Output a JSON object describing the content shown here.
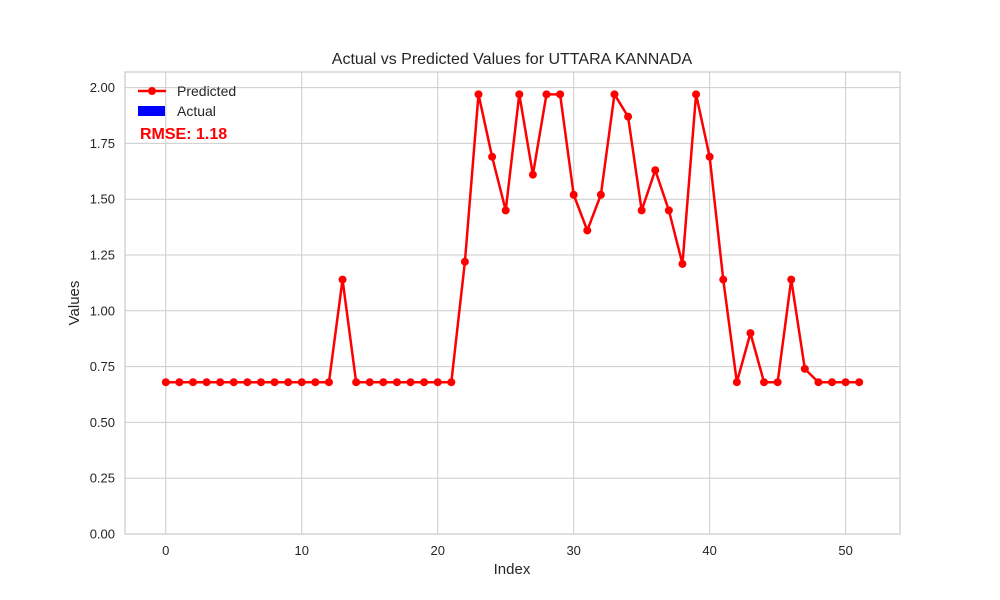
{
  "chart_data": {
    "type": "line",
    "title": "Actual vs Predicted Values for UTTARA KANNADA",
    "xlabel": "Index",
    "ylabel": "Values",
    "xlim": [
      -3,
      54
    ],
    "ylim": [
      0,
      2.07
    ],
    "xticks": [
      0,
      10,
      20,
      30,
      40,
      50
    ],
    "yticks": [
      0.0,
      0.25,
      0.5,
      0.75,
      1.0,
      1.25,
      1.5,
      1.75,
      2.0
    ],
    "grid": true,
    "legend_position": "top-left",
    "annotation": "RMSE: 1.18",
    "series": [
      {
        "name": "Predicted",
        "color": "#ff0000",
        "x": [
          0,
          1,
          2,
          3,
          4,
          5,
          6,
          7,
          8,
          9,
          10,
          11,
          12,
          13,
          14,
          15,
          16,
          17,
          18,
          19,
          20,
          21,
          22,
          23,
          24,
          25,
          26,
          27,
          28,
          29,
          30,
          31,
          32,
          33,
          34,
          35,
          36,
          37,
          38,
          39,
          40,
          41,
          42,
          43,
          44,
          45,
          46,
          47,
          48,
          49,
          50,
          51
        ],
        "values": [
          0.68,
          0.68,
          0.68,
          0.68,
          0.68,
          0.68,
          0.68,
          0.68,
          0.68,
          0.68,
          0.68,
          0.68,
          0.68,
          1.14,
          0.68,
          0.68,
          0.68,
          0.68,
          0.68,
          0.68,
          0.68,
          0.68,
          1.22,
          1.97,
          1.69,
          1.45,
          1.97,
          1.61,
          1.97,
          1.97,
          1.52,
          1.36,
          1.52,
          1.97,
          1.87,
          1.45,
          1.63,
          1.45,
          1.21,
          1.97,
          1.69,
          1.14,
          0.68,
          0.9,
          0.68,
          0.68,
          1.14,
          0.74,
          0.68,
          0.68,
          0.68,
          0.68
        ]
      },
      {
        "name": "Actual",
        "color": "#0000ff",
        "x": [],
        "values": []
      }
    ]
  }
}
